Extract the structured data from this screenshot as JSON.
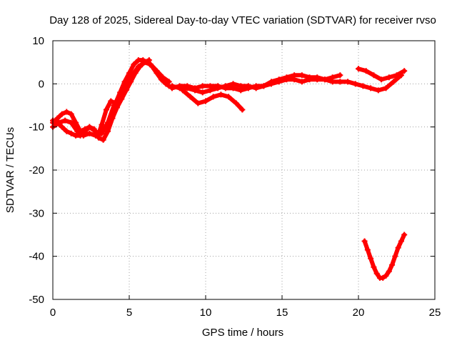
{
  "chart_data": {
    "type": "scatter",
    "title": "Day 128 of 2025, Sidereal Day-to-day VTEC variation (SDTVAR) for receiver rvso",
    "xlabel": "GPS time / hours",
    "ylabel": "SDTVAR / TECUs",
    "xlim": [
      0,
      25
    ],
    "ylim": [
      -50,
      10
    ],
    "xticks": [
      0,
      5,
      10,
      15,
      20,
      25
    ],
    "yticks": [
      -50,
      -40,
      -30,
      -20,
      -10,
      0,
      10
    ],
    "grid": true,
    "marker": "plus",
    "color": "#ff0000",
    "series": [
      {
        "name": "track-1",
        "x": [
          0.0,
          0.3,
          0.6,
          0.9,
          1.2,
          1.5,
          1.8,
          2.1,
          2.4,
          2.7,
          3.0,
          3.2,
          3.5,
          3.8,
          4.1,
          4.4,
          4.7,
          5.0,
          5.3,
          5.6,
          5.9,
          6.2,
          6.5,
          6.8,
          7.1,
          7.4,
          7.6
        ],
        "y": [
          -9.0,
          -8.0,
          -7.0,
          -6.5,
          -7.0,
          -9.0,
          -11.0,
          -10.5,
          -10.0,
          -10.8,
          -11.5,
          -9.5,
          -6.0,
          -4.0,
          -4.5,
          -2.0,
          0.5,
          2.5,
          4.5,
          5.5,
          5.5,
          5.0,
          4.0,
          2.5,
          1.0,
          0.0,
          -0.5
        ]
      },
      {
        "name": "track-2",
        "x": [
          0.0,
          0.4,
          0.8,
          1.2,
          1.6,
          2.0,
          2.4,
          2.8,
          3.2,
          3.6,
          4.0,
          4.4,
          4.8,
          5.2,
          5.6,
          6.0,
          6.4,
          6.8,
          7.2,
          7.6
        ],
        "y": [
          -10.0,
          -9.0,
          -8.5,
          -9.0,
          -11.0,
          -12.0,
          -11.5,
          -12.0,
          -11.5,
          -9.0,
          -5.0,
          -2.5,
          -0.5,
          2.0,
          4.0,
          5.0,
          4.5,
          3.0,
          1.5,
          0.5
        ]
      },
      {
        "name": "track-3",
        "x": [
          0.0,
          0.3,
          0.6,
          0.9,
          1.2,
          1.5,
          1.8,
          2.1,
          2.4,
          2.7,
          3.0,
          3.3,
          3.6,
          3.9,
          4.2,
          4.5,
          4.8,
          5.1,
          5.4,
          5.7,
          6.0,
          6.3
        ],
        "y": [
          -8.5,
          -9.0,
          -10.0,
          -11.0,
          -11.5,
          -12.0,
          -12.0,
          -11.0,
          -10.0,
          -10.5,
          -12.5,
          -13.0,
          -11.0,
          -8.0,
          -5.5,
          -3.5,
          -1.5,
          0.5,
          2.5,
          4.0,
          5.0,
          5.5
        ]
      },
      {
        "name": "track-4",
        "x": [
          7.8,
          8.3,
          8.8,
          9.3,
          9.8,
          10.3,
          10.8,
          11.3,
          11.8,
          12.3,
          12.8,
          13.3,
          13.8,
          14.3,
          14.8,
          15.3,
          15.8,
          16.3,
          16.8,
          17.3,
          17.8,
          18.3,
          18.8,
          19.3,
          19.8,
          20.3,
          20.8,
          21.3,
          21.8,
          22.3,
          22.8
        ],
        "y": [
          -1.0,
          -0.5,
          -0.5,
          -1.0,
          -0.5,
          -0.5,
          -0.5,
          -1.0,
          -1.0,
          -1.5,
          -1.0,
          -0.5,
          -0.5,
          0.0,
          0.5,
          1.0,
          1.0,
          0.5,
          1.0,
          1.0,
          1.0,
          0.5,
          0.5,
          0.5,
          0.0,
          -0.5,
          -1.0,
          -1.5,
          -1.0,
          0.5,
          2.0
        ]
      },
      {
        "name": "track-5",
        "x": [
          7.8,
          8.3,
          8.8,
          9.3,
          9.8,
          10.3,
          10.8,
          11.3,
          11.8,
          12.3,
          12.8,
          13.3,
          13.8,
          14.3,
          14.8,
          15.3,
          15.8,
          16.3,
          16.8,
          17.3,
          17.8,
          18.3,
          18.8
        ],
        "y": [
          -0.5,
          -1.0,
          -1.0,
          -1.5,
          -2.0,
          -1.5,
          -1.0,
          -0.5,
          0.0,
          -0.5,
          -0.5,
          -1.0,
          -0.5,
          0.5,
          1.0,
          1.5,
          2.0,
          2.0,
          1.5,
          1.5,
          1.0,
          1.5,
          2.0
        ]
      },
      {
        "name": "track-6",
        "x": [
          8.5,
          9.0,
          9.5,
          10.0,
          10.5,
          11.0,
          11.5,
          12.0,
          12.4
        ],
        "y": [
          -1.5,
          -3.0,
          -4.5,
          -4.0,
          -3.0,
          -2.5,
          -3.0,
          -4.5,
          -6.0
        ]
      },
      {
        "name": "track-7",
        "x": [
          20.0,
          20.5,
          21.0,
          21.5,
          22.0,
          22.5,
          23.0
        ],
        "y": [
          3.5,
          3.0,
          2.0,
          1.0,
          1.5,
          2.0,
          3.0
        ]
      },
      {
        "name": "track-8",
        "x": [
          20.4,
          20.6,
          20.8,
          21.0,
          21.2,
          21.4,
          21.6,
          21.8,
          22.0,
          22.2,
          22.4,
          22.6,
          22.8,
          23.0
        ],
        "y": [
          -36.5,
          -38.5,
          -40.5,
          -42.5,
          -44.0,
          -45.0,
          -45.0,
          -44.5,
          -43.5,
          -42.0,
          -40.0,
          -38.0,
          -36.5,
          -35.0
        ]
      }
    ]
  }
}
